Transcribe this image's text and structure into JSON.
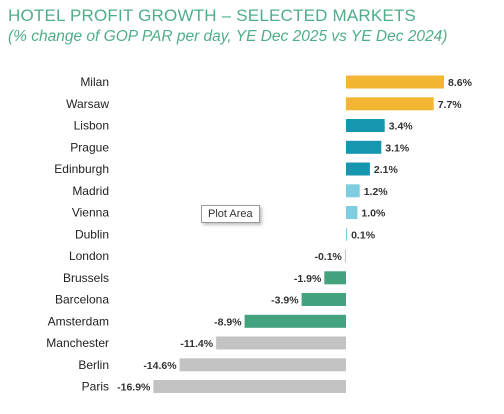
{
  "title": "HOTEL PROFIT GROWTH – SELECTED MARKETS",
  "subtitle": "(% change of GOP PAR per day, YE Dec 2025 vs YE Dec 2024)",
  "tooltip": "Plot Area",
  "colors": {
    "title": "#4fae88",
    "high": "#f2b632",
    "mid": "#1796b0",
    "low": "#7ecde0",
    "negative_mid": "#43a37e",
    "negative_high": "#c3c3c3"
  },
  "chart_data": {
    "type": "bar",
    "orientation": "horizontal",
    "categories": [
      "Milan",
      "Warsaw",
      "Lisbon",
      "Prague",
      "Edinburgh",
      "Madrid",
      "Vienna",
      "Dublin",
      "London",
      "Brussels",
      "Barcelona",
      "Amsterdam",
      "Manchester",
      "Berlin",
      "Paris"
    ],
    "values": [
      8.6,
      7.7,
      3.4,
      3.1,
      2.1,
      1.2,
      1.0,
      0.1,
      -0.1,
      -1.9,
      -3.9,
      -8.9,
      -11.4,
      -14.6,
      -16.9
    ],
    "data_labels": [
      "8.6%",
      "7.7%",
      "3.4%",
      "3.1%",
      "2.1%",
      "1.2%",
      "1.0%",
      "0.1%",
      "-0.1%",
      "-1.9%",
      "-3.9%",
      "-8.9%",
      "-11.4%",
      "-14.6%",
      "-16.9%"
    ],
    "bar_colors": [
      "#f2b632",
      "#f2b632",
      "#1796b0",
      "#1796b0",
      "#1796b0",
      "#7ecde0",
      "#7ecde0",
      "#7ecde0",
      "#c3c3c3",
      "#43a37e",
      "#43a37e",
      "#43a37e",
      "#c3c3c3",
      "#c3c3c3",
      "#c3c3c3"
    ],
    "xlim": [
      -16.9,
      8.6
    ],
    "grid": false,
    "legend": "none"
  }
}
